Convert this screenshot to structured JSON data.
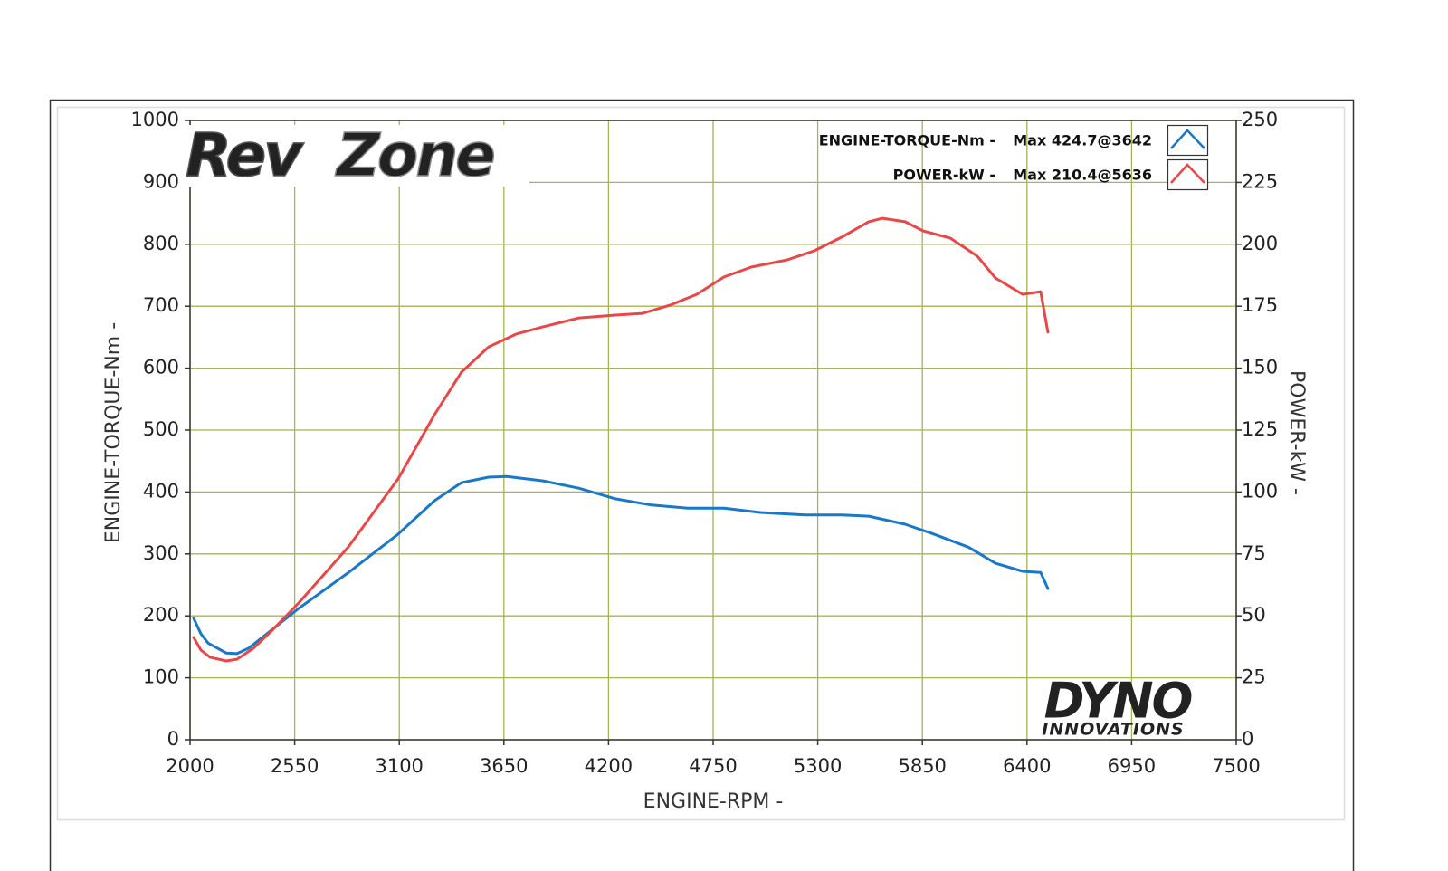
{
  "chart_data": {
    "type": "line",
    "xlabel": "ENGINE-RPM -",
    "ylabel": "ENGINE-TORQUE-Nm -",
    "y2label": "POWER-kW -",
    "xlim": [
      2000,
      7500
    ],
    "xticks": [
      2000,
      2550,
      3100,
      3650,
      4200,
      4750,
      5300,
      5850,
      6400,
      6950,
      7500
    ],
    "ylim": [
      0,
      1000
    ],
    "yticks": [
      0,
      100,
      200,
      300,
      400,
      500,
      600,
      700,
      800,
      900,
      1000
    ],
    "y2lim": [
      0,
      250
    ],
    "y2ticks": [
      0,
      25,
      50,
      75,
      100,
      125,
      150,
      175,
      200,
      225,
      250
    ],
    "grid": true,
    "grid_color": "#a9b255",
    "logo_top": {
      "part1": "Rev",
      "part2": "Zone"
    },
    "logo_bottom": {
      "line1": "DYNO",
      "line2": "INNOVATIONS"
    },
    "series": [
      {
        "name": "ENGINE-TORQUE-Nm -",
        "legend_note": "Max 424.7@3642",
        "color": "#1a78c8",
        "x": [
          2019,
          2057,
          2095,
          2143,
          2190,
          2247,
          2309,
          2428,
          2571,
          2833,
          3094,
          3285,
          3427,
          3570,
          3665,
          3856,
          4046,
          4236,
          4426,
          4617,
          4807,
          4997,
          5235,
          5426,
          5568,
          5759,
          5901,
          6092,
          6234,
          6377,
          6472,
          6510
        ],
        "values": [
          196,
          171,
          156,
          148,
          140,
          139,
          148,
          177,
          212,
          270,
          332,
          386,
          415,
          424,
          425,
          418,
          406,
          389,
          379,
          374,
          374,
          367,
          363,
          363,
          361,
          348,
          333,
          311,
          285,
          272,
          270,
          244
        ]
      },
      {
        "name": "POWER-kW -",
        "legend_note": "Max 210.4@5636",
        "color": "#e84848",
        "axis": "y2",
        "x": [
          2019,
          2057,
          2105,
          2190,
          2247,
          2333,
          2428,
          2571,
          2833,
          3094,
          3285,
          3427,
          3570,
          3713,
          3856,
          4046,
          4236,
          4379,
          4522,
          4664,
          4807,
          4950,
          5140,
          5283,
          5426,
          5568,
          5640,
          5759,
          5854,
          5997,
          6139,
          6234,
          6377,
          6472,
          6510
        ],
        "values": [
          41.3,
          36.2,
          33.3,
          31.8,
          32.5,
          36.9,
          43.9,
          55.2,
          77.9,
          105.3,
          131.2,
          148.4,
          158.6,
          163.7,
          166.7,
          170.3,
          171.4,
          172.1,
          175.4,
          179.8,
          186.8,
          190.8,
          193.7,
          197.4,
          202.9,
          209.1,
          210.5,
          209.1,
          205.4,
          202.5,
          195.2,
          186.4,
          179.8,
          180.9,
          164.5
        ]
      }
    ]
  }
}
